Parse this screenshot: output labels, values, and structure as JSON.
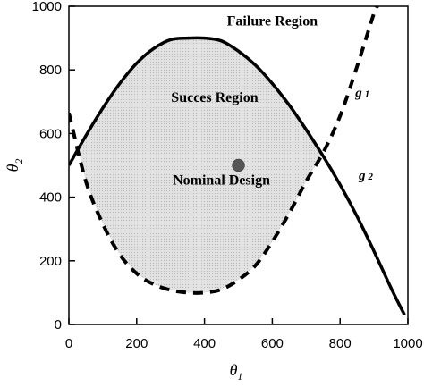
{
  "chart_data": {
    "type": "line",
    "title": "",
    "xlabel": "θ",
    "xlabel_sub": "1",
    "ylabel": "θ",
    "ylabel_sub": "2",
    "xlim": [
      0,
      1000
    ],
    "ylim": [
      0,
      1000
    ],
    "xticks": [
      0,
      200,
      400,
      600,
      800,
      1000
    ],
    "yticks": [
      0,
      200,
      400,
      600,
      800,
      1000
    ],
    "grid": false,
    "series": [
      {
        "name": "g",
        "name_sub": "1",
        "style": "dashed",
        "x": [
          0,
          50,
          100,
          150,
          200,
          250,
          300,
          350,
          400,
          450,
          500,
          550,
          600,
          650,
          700,
          750,
          800,
          850,
          900,
          910
        ],
        "y": [
          665,
          450,
          316,
          220,
          160,
          126,
          108,
          100,
          100,
          110,
          140,
          185,
          260,
          350,
          450,
          540,
          655,
          810,
          978,
          1000
        ]
      },
      {
        "name": "g",
        "name_sub": "2",
        "style": "solid",
        "x": [
          0,
          50,
          100,
          150,
          200,
          250,
          300,
          350,
          400,
          450,
          500,
          550,
          600,
          650,
          700,
          750,
          800,
          850,
          900,
          950,
          990
        ],
        "y": [
          500,
          593,
          680,
          757,
          821,
          867,
          895,
          900,
          900,
          891,
          859,
          815,
          757,
          689,
          612,
          529,
          439,
          340,
          230,
          115,
          30
        ]
      }
    ],
    "annotations": [
      {
        "text": "Failure Region",
        "x": 600,
        "y": 940
      },
      {
        "text": "Succes Region",
        "x": 430,
        "y": 700
      },
      {
        "text": "Nominal Design",
        "x": 450,
        "y": 440
      }
    ],
    "points": [
      {
        "name": "nominal-design",
        "x": 500,
        "y": 500
      }
    ]
  }
}
